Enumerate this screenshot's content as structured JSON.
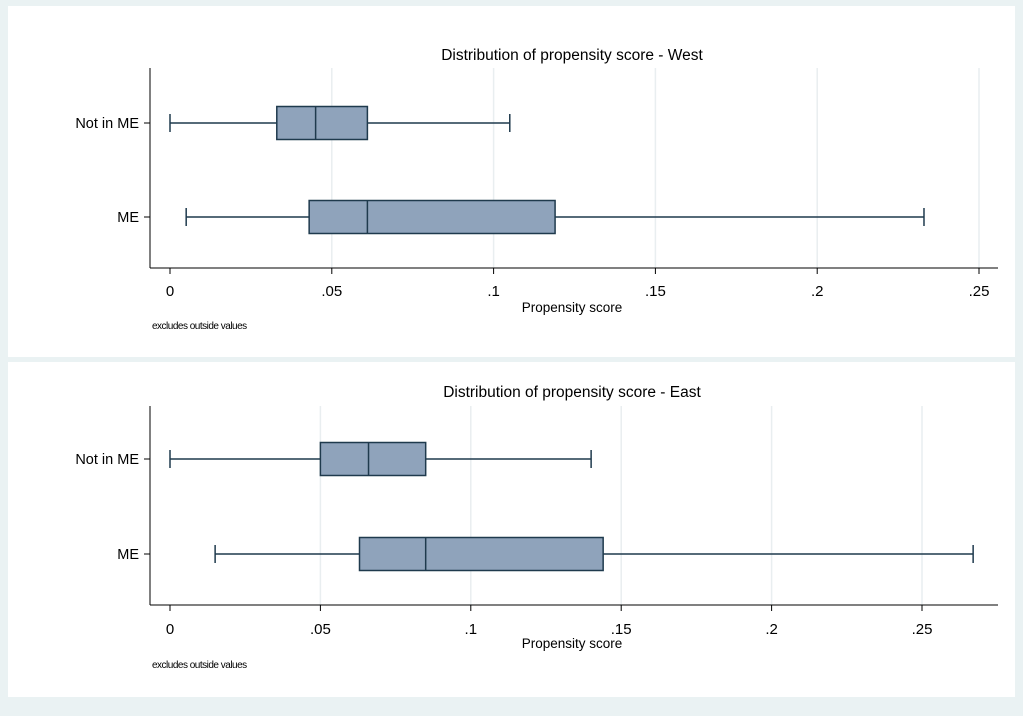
{
  "colors": {
    "background": "#eaf2f3",
    "panel": "#ffffff",
    "box_fill": "#8fa3bb",
    "box_stroke": "#1f3a4d",
    "grid": "#e9eef0",
    "axis": "#000000"
  },
  "chart_data": [
    {
      "type": "box",
      "title": "Distribution of propensity score - West",
      "xlabel": "Propensity score",
      "note": "excludes outside values",
      "xlim": [
        0,
        0.25
      ],
      "xticks": [
        {
          "value": 0,
          "label": "0"
        },
        {
          "value": 0.05,
          "label": ".05"
        },
        {
          "value": 0.1,
          "label": ".1"
        },
        {
          "value": 0.15,
          "label": ".15"
        },
        {
          "value": 0.2,
          "label": ".2"
        },
        {
          "value": 0.25,
          "label": ".25"
        }
      ],
      "categories": [
        "Not in ME",
        "ME"
      ],
      "boxes": [
        {
          "category": "Not in ME",
          "whisker_low": 0.0,
          "q1": 0.033,
          "median": 0.045,
          "q3": 0.061,
          "whisker_high": 0.105
        },
        {
          "category": "ME",
          "whisker_low": 0.005,
          "q1": 0.043,
          "median": 0.061,
          "q3": 0.119,
          "whisker_high": 0.233
        }
      ],
      "grid": true
    },
    {
      "type": "box",
      "title": "Distribution of propensity score - East",
      "xlabel": "Propensity score",
      "note": "excludes outside values",
      "xlim": [
        0,
        0.25
      ],
      "xticks": [
        {
          "value": 0,
          "label": "0"
        },
        {
          "value": 0.05,
          "label": ".05"
        },
        {
          "value": 0.1,
          "label": ".1"
        },
        {
          "value": 0.15,
          "label": ".15"
        },
        {
          "value": 0.2,
          "label": ".2"
        },
        {
          "value": 0.25,
          "label": ".25"
        }
      ],
      "categories": [
        "Not in ME",
        "ME"
      ],
      "boxes": [
        {
          "category": "Not in ME",
          "whisker_low": 0.0,
          "q1": 0.05,
          "median": 0.066,
          "q3": 0.085,
          "whisker_high": 0.14
        },
        {
          "category": "ME",
          "whisker_low": 0.015,
          "q1": 0.063,
          "median": 0.085,
          "q3": 0.144,
          "whisker_high": 0.267
        }
      ],
      "grid": true
    }
  ]
}
